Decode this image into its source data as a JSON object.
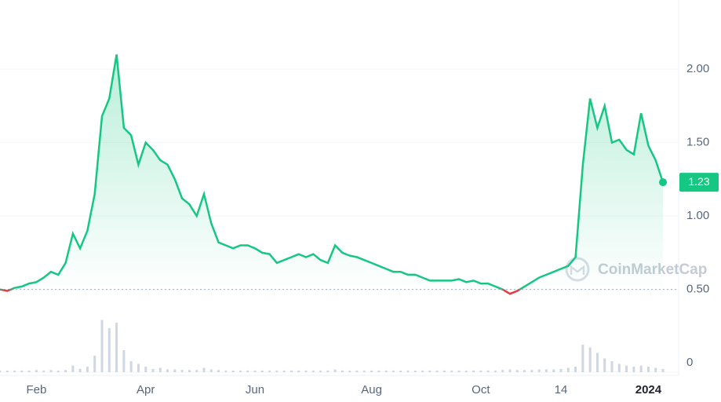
{
  "chart_data": [
    {
      "type": "line",
      "categories": [
        null,
        null,
        null,
        null,
        null,
        "Feb",
        null,
        null,
        null,
        null,
        null,
        null,
        null,
        null,
        null,
        null,
        null,
        null,
        null,
        null,
        "Apr",
        null,
        null,
        null,
        null,
        null,
        null,
        null,
        null,
        null,
        null,
        null,
        null,
        null,
        null,
        "Jun",
        null,
        null,
        null,
        null,
        null,
        null,
        null,
        null,
        null,
        null,
        null,
        null,
        null,
        null,
        null,
        "Aug",
        null,
        null,
        null,
        null,
        null,
        null,
        null,
        null,
        null,
        null,
        null,
        null,
        null,
        null,
        "Oct",
        null,
        null,
        null,
        null,
        null,
        null,
        null,
        null,
        null,
        null,
        "14",
        null,
        null,
        null,
        null,
        null,
        null,
        null,
        null,
        null,
        null,
        null,
        "2024",
        null,
        null
      ],
      "values": [
        0.5,
        0.49,
        0.51,
        0.52,
        0.54,
        0.55,
        0.58,
        0.62,
        0.6,
        0.68,
        0.88,
        0.78,
        0.9,
        1.15,
        1.68,
        1.8,
        2.1,
        1.6,
        1.55,
        1.35,
        1.5,
        1.45,
        1.38,
        1.35,
        1.25,
        1.12,
        1.08,
        1.0,
        1.15,
        0.95,
        0.82,
        0.8,
        0.78,
        0.8,
        0.8,
        0.78,
        0.75,
        0.74,
        0.68,
        0.7,
        0.72,
        0.74,
        0.72,
        0.74,
        0.7,
        0.68,
        0.8,
        0.75,
        0.73,
        0.72,
        0.7,
        0.68,
        0.66,
        0.64,
        0.62,
        0.62,
        0.6,
        0.6,
        0.58,
        0.56,
        0.56,
        0.56,
        0.56,
        0.57,
        0.55,
        0.56,
        0.54,
        0.54,
        0.52,
        0.5,
        0.47,
        0.49,
        0.52,
        0.55,
        0.58,
        0.6,
        0.62,
        0.64,
        0.66,
        0.72,
        1.35,
        1.8,
        1.6,
        1.75,
        1.5,
        1.52,
        1.45,
        1.42,
        1.7,
        1.48,
        1.38,
        1.23
      ],
      "color": "#16c784",
      "down_color": "#ea3943",
      "ylim": [
        0.3,
        2.45
      ],
      "yticks": [
        {
          "value": 0.5,
          "label": "0.50"
        },
        {
          "value": 1.0,
          "label": "1.00"
        },
        {
          "value": 1.5,
          "label": "1.50"
        },
        {
          "value": 2.0,
          "label": "2.00"
        }
      ],
      "grid": true,
      "watermark": "CoinMarketCap"
    },
    {
      "type": "bar",
      "values": [
        3,
        3,
        3,
        3,
        3,
        4,
        3,
        4,
        3,
        4,
        12,
        6,
        10,
        30,
        95,
        80,
        90,
        40,
        20,
        15,
        10,
        6,
        8,
        5,
        5,
        4,
        4,
        4,
        8,
        5,
        4,
        3,
        3,
        3,
        3,
        3,
        3,
        3,
        3,
        3,
        3,
        3,
        3,
        3,
        3,
        3,
        5,
        3,
        3,
        3,
        3,
        3,
        3,
        3,
        3,
        3,
        3,
        3,
        3,
        3,
        3,
        3,
        3,
        3,
        3,
        3,
        3,
        3,
        3,
        4,
        5,
        4,
        4,
        4,
        5,
        5,
        5,
        6,
        8,
        10,
        50,
        45,
        35,
        25,
        20,
        15,
        12,
        10,
        12,
        10,
        8,
        6
      ],
      "color": "#cfd6e4",
      "ylim": [
        0,
        100
      ],
      "yticks": [
        0
      ]
    }
  ]
}
